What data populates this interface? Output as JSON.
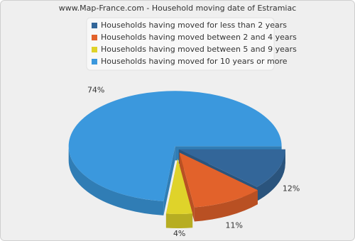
{
  "chart_data": {
    "type": "pie",
    "title": "www.Map-France.com - Household moving date of Estramiac",
    "categories": [
      "Households having moved for less than 2 years",
      "Households having moved between 2 and 4 years",
      "Households having moved between 5 and 9 years",
      "Households having moved for 10 years or more"
    ],
    "values": [
      12,
      11,
      4,
      74
    ],
    "value_labels": [
      "12%",
      "11%",
      "4%",
      "74%"
    ],
    "colors": [
      "#336699",
      "#e2622b",
      "#dfd32a",
      "#3b98dd"
    ]
  }
}
